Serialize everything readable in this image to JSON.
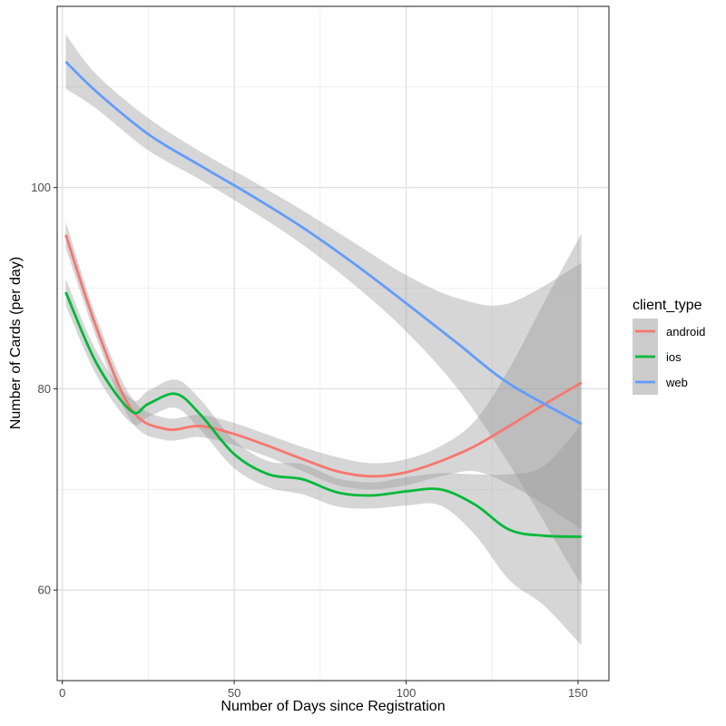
{
  "chart_data": {
    "type": "line",
    "xlabel": "Number of Days since Registration",
    "ylabel": "Number of Cards (per day)",
    "xlim": [
      -1.5,
      159
    ],
    "ylim": [
      51,
      118
    ],
    "x_ticks": [
      0,
      50,
      100,
      150
    ],
    "y_ticks": [
      60,
      80,
      100
    ],
    "x_minor": [
      25,
      75,
      125
    ],
    "y_minor": [
      70,
      90,
      110
    ],
    "grid": true,
    "legend": {
      "title": "client_type",
      "placement": "right"
    },
    "series": [
      {
        "name": "android",
        "color": "#F8766D",
        "x": [
          1,
          10,
          20,
          30,
          40,
          50,
          60,
          70,
          80,
          90,
          100,
          110,
          120,
          130,
          140,
          151
        ],
        "y": [
          95.3,
          86,
          78,
          76,
          76.3,
          75.5,
          74.3,
          73,
          71.8,
          71.3,
          71.7,
          72.8,
          74.3,
          76.3,
          78.4,
          80.6
        ],
        "lower": [
          94,
          85,
          76.8,
          74.9,
          75.2,
          74.4,
          73.2,
          71.8,
          70.4,
          70,
          70.4,
          71.3,
          71.8,
          70.5,
          68.5,
          66
        ],
        "upper": [
          96.6,
          87,
          79.2,
          77.1,
          77.4,
          76.6,
          75.4,
          74.2,
          73.2,
          72.6,
          73,
          74.3,
          76.8,
          82,
          88.5,
          95.4
        ]
      },
      {
        "name": "ios",
        "color": "#00BA38",
        "x": [
          1,
          10,
          20,
          25,
          33,
          40,
          50,
          60,
          70,
          80,
          90,
          100,
          110,
          120,
          130,
          140,
          151
        ],
        "y": [
          89.6,
          82.5,
          77.8,
          78.5,
          79.5,
          77.5,
          73.5,
          71.5,
          71,
          69.7,
          69.4,
          69.8,
          70,
          68.5,
          66,
          65.4,
          65.3
        ],
        "lower": [
          88.3,
          81.3,
          76.6,
          77.2,
          78.1,
          76,
          72.1,
          70.2,
          69.5,
          68.3,
          68.1,
          68.4,
          68.4,
          65.5,
          61,
          58.5,
          54.5
        ],
        "upper": [
          90.9,
          83.7,
          79,
          79.8,
          80.9,
          79,
          74.9,
          72.8,
          72.5,
          71.1,
          70.7,
          71.2,
          71.6,
          71.5,
          71.5,
          72.3,
          76.5
        ]
      },
      {
        "name": "web",
        "color": "#619CFF",
        "x": [
          1,
          10,
          25,
          40,
          55,
          70,
          85,
          100,
          115,
          130,
          151
        ],
        "y": [
          112.5,
          109.5,
          105.3,
          102.2,
          99.2,
          96,
          92.4,
          88.5,
          84.5,
          80.5,
          76.5
        ],
        "lower": [
          109.8,
          107.8,
          103.7,
          100.8,
          97.7,
          94.3,
          90.3,
          85.7,
          80,
          72.5,
          60.5
        ],
        "upper": [
          115.2,
          111.2,
          106.9,
          103.6,
          100.7,
          97.7,
          94.5,
          91.3,
          89,
          88.5,
          92.5
        ]
      }
    ]
  }
}
